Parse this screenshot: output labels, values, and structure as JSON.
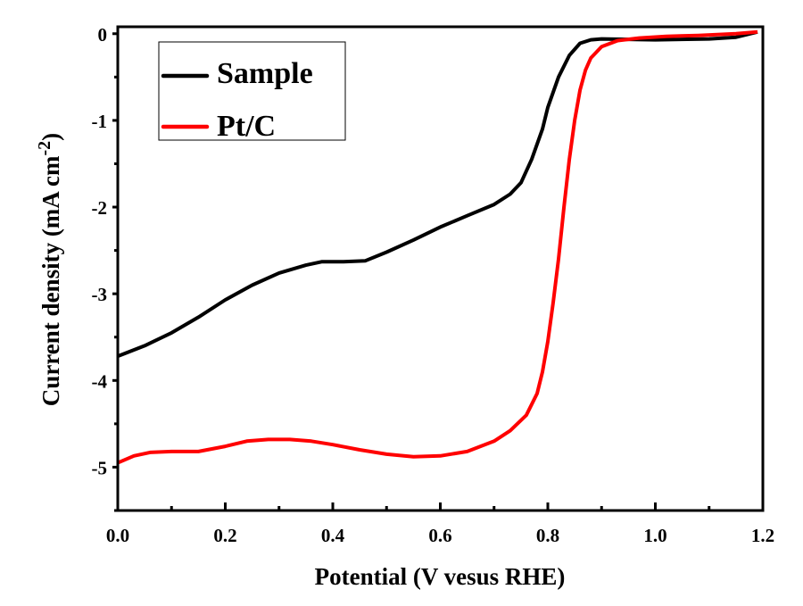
{
  "chart_data": {
    "type": "line",
    "title": "",
    "xlabel": "Potential (V vesus RHE)",
    "ylabel": "Current density (mA cm",
    "ylabel_sup": "-2",
    "ylabel_close": ")",
    "xlim": [
      0,
      1.2
    ],
    "ylim": [
      -5.5,
      0.08
    ],
    "xticks": [
      0.0,
      0.2,
      0.4,
      0.6,
      0.8,
      1.0,
      1.2
    ],
    "xtick_labels": [
      "0.0",
      "0.2",
      "0.4",
      "0.6",
      "0.8",
      "1.0",
      "1.2"
    ],
    "yticks": [
      0,
      -1,
      -2,
      -3,
      -4,
      -5
    ],
    "ytick_labels": [
      "0",
      "-1",
      "-2",
      "-3",
      "-4",
      "-5"
    ],
    "grid": false,
    "legend_position": "top-left",
    "series": [
      {
        "name": "Sample",
        "color": "#000000",
        "x": [
          0,
          0.05,
          0.1,
          0.15,
          0.2,
          0.25,
          0.3,
          0.35,
          0.38,
          0.42,
          0.46,
          0.5,
          0.55,
          0.6,
          0.65,
          0.7,
          0.73,
          0.75,
          0.77,
          0.79,
          0.8,
          0.82,
          0.84,
          0.86,
          0.88,
          0.9,
          1.0,
          1.1,
          1.15,
          1.19
        ],
        "y": [
          -3.72,
          -3.6,
          -3.45,
          -3.27,
          -3.07,
          -2.9,
          -2.76,
          -2.67,
          -2.63,
          -2.63,
          -2.62,
          -2.52,
          -2.38,
          -2.23,
          -2.1,
          -1.97,
          -1.85,
          -1.72,
          -1.45,
          -1.1,
          -0.85,
          -0.5,
          -0.25,
          -0.11,
          -0.07,
          -0.06,
          -0.07,
          -0.06,
          -0.04,
          0.02
        ]
      },
      {
        "name": "Pt/C",
        "color": "#ff0000",
        "x": [
          0,
          0.03,
          0.06,
          0.1,
          0.15,
          0.2,
          0.24,
          0.28,
          0.32,
          0.36,
          0.4,
          0.45,
          0.5,
          0.55,
          0.6,
          0.65,
          0.7,
          0.73,
          0.76,
          0.78,
          0.79,
          0.8,
          0.81,
          0.82,
          0.83,
          0.84,
          0.85,
          0.86,
          0.87,
          0.88,
          0.9,
          0.93,
          0.97,
          1.02,
          1.08,
          1.15,
          1.19
        ],
        "y": [
          -4.95,
          -4.87,
          -4.83,
          -4.82,
          -4.82,
          -4.76,
          -4.7,
          -4.68,
          -4.68,
          -4.7,
          -4.74,
          -4.8,
          -4.85,
          -4.88,
          -4.87,
          -4.82,
          -4.7,
          -4.58,
          -4.4,
          -4.15,
          -3.9,
          -3.55,
          -3.1,
          -2.6,
          -2.0,
          -1.45,
          -1.0,
          -0.65,
          -0.42,
          -0.28,
          -0.15,
          -0.08,
          -0.05,
          -0.03,
          -0.02,
          0.0,
          0.02
        ]
      }
    ]
  }
}
